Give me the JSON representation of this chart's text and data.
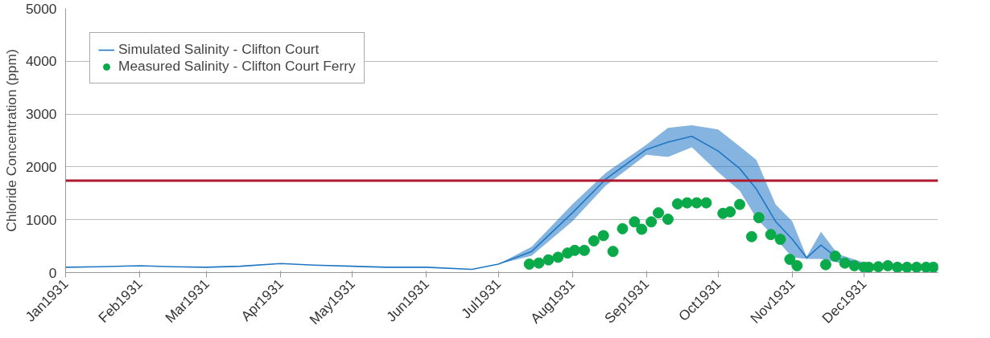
{
  "chart_data": {
    "type": "line",
    "ylabel": "Chloride Concentration (ppm)",
    "xlim": [
      "1931-01-01",
      "1932-01-01"
    ],
    "xticks": [
      {
        "value": "1931-01-01",
        "label": "Jan1931"
      },
      {
        "value": "1931-02-01",
        "label": "Feb1931"
      },
      {
        "value": "1931-03-01",
        "label": "Mar1931"
      },
      {
        "value": "1931-04-01",
        "label": "Apr1931"
      },
      {
        "value": "1931-05-01",
        "label": "May1931"
      },
      {
        "value": "1931-06-01",
        "label": "Jun1931"
      },
      {
        "value": "1931-07-01",
        "label": "Jul1931"
      },
      {
        "value": "1931-08-01",
        "label": "Aug1931"
      },
      {
        "value": "1931-09-01",
        "label": "Sep1931"
      },
      {
        "value": "1931-10-01",
        "label": "Oct1931"
      },
      {
        "value": "1931-11-01",
        "label": "Nov1931"
      },
      {
        "value": "1931-12-01",
        "label": "Dec1931"
      }
    ],
    "ylim": [
      0,
      5000
    ],
    "yticks": [
      0,
      1000,
      2000,
      3000,
      4000,
      5000
    ],
    "grid": "y",
    "legend": "top left",
    "series": [
      {
        "name": "Simulated Salinity - Clifton Court",
        "color": "#1f77c4",
        "x": [
          "1931-01-01",
          "1931-01-15",
          "1931-02-01",
          "1931-02-15",
          "1931-03-01",
          "1931-03-15",
          "1931-04-01",
          "1931-04-15",
          "1931-05-01",
          "1931-05-15",
          "1931-06-01",
          "1931-06-20",
          "1931-07-01",
          "1931-07-15",
          "1931-08-01",
          "1931-08-15",
          "1931-09-01",
          "1931-09-10",
          "1931-09-20",
          "1931-10-01",
          "1931-10-10",
          "1931-10-17",
          "1931-10-25",
          "1931-11-01",
          "1931-11-07",
          "1931-11-13",
          "1931-11-20",
          "1931-12-01",
          "1931-12-10",
          "1931-12-31"
        ],
        "values": [
          100,
          110,
          130,
          110,
          100,
          120,
          170,
          140,
          120,
          100,
          100,
          60,
          160,
          400,
          1130,
          1770,
          2330,
          2470,
          2580,
          2300,
          1970,
          1580,
          970,
          630,
          280,
          520,
          270,
          150,
          100,
          100
        ],
        "lower": [
          100,
          110,
          130,
          110,
          100,
          120,
          170,
          140,
          120,
          100,
          100,
          60,
          160,
          320,
          970,
          1650,
          2230,
          2190,
          2370,
          1900,
          1550,
          1030,
          645,
          290,
          260,
          260,
          190,
          100,
          100,
          100
        ],
        "upper": [
          100,
          110,
          130,
          110,
          100,
          120,
          170,
          140,
          120,
          100,
          100,
          60,
          160,
          490,
          1290,
          1890,
          2420,
          2740,
          2790,
          2710,
          2390,
          2130,
          1290,
          970,
          300,
          770,
          355,
          190,
          100,
          100
        ]
      },
      {
        "name": "Measured Salinity - Clifton Court Ferry",
        "type": "scatter",
        "color": "#0aaa4a",
        "marker": "circle",
        "x": [
          "1931-07-14",
          "1931-07-18",
          "1931-07-22",
          "1931-07-26",
          "1931-07-30",
          "1931-08-02",
          "1931-08-06",
          "1931-08-10",
          "1931-08-14",
          "1931-08-18",
          "1931-08-22",
          "1931-08-27",
          "1931-08-30",
          "1931-09-03",
          "1931-09-06",
          "1931-09-10",
          "1931-09-14",
          "1931-09-18",
          "1931-09-22",
          "1931-09-26",
          "1931-10-03",
          "1931-10-06",
          "1931-10-10",
          "1931-10-15",
          "1931-10-18",
          "1931-10-23",
          "1931-10-27",
          "1931-10-31",
          "1931-11-03",
          "1931-11-15",
          "1931-11-19",
          "1931-11-23",
          "1931-11-27",
          "1931-12-01",
          "1931-12-03",
          "1931-12-07",
          "1931-12-11",
          "1931-12-15",
          "1931-12-19",
          "1931-12-23",
          "1931-12-27",
          "1931-12-30"
        ],
        "values": [
          160,
          180,
          240,
          290,
          370,
          420,
          420,
          600,
          700,
          400,
          830,
          960,
          820,
          960,
          1130,
          1010,
          1300,
          1320,
          1320,
          1320,
          1120,
          1150,
          1290,
          680,
          1040,
          720,
          630,
          250,
          130,
          150,
          310,
          180,
          130,
          100,
          100,
          110,
          130,
          100,
          100,
          100,
          100,
          100
        ]
      }
    ],
    "ref_lines": [
      {
        "axis": "y",
        "value": 1740,
        "color": "#b0182f",
        "line_style": "solid"
      }
    ]
  }
}
